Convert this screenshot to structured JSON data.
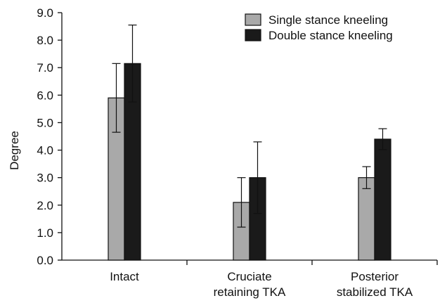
{
  "chart_data": {
    "type": "bar",
    "title": "",
    "xlabel": "",
    "ylabel": "Degree",
    "ylim": [
      0,
      9
    ],
    "ytick_labels": [
      "0.0",
      "1.0",
      "2.0",
      "3.0",
      "4.0",
      "5.0",
      "6.0",
      "7.0",
      "8.0",
      "9.0"
    ],
    "categories": [
      [
        "Intact"
      ],
      [
        "Cruciate",
        "retaining TKA"
      ],
      [
        "Posterior",
        "stabilized TKA"
      ]
    ],
    "series": [
      {
        "name": "Single stance kneeling",
        "color": "#a9a9a9",
        "values": [
          5.9,
          2.1,
          3.0
        ],
        "errors": [
          1.25,
          0.9,
          0.4
        ]
      },
      {
        "name": "Double stance kneeling",
        "color": "#1a1a1a",
        "values": [
          7.15,
          3.0,
          4.4
        ],
        "errors": [
          1.4,
          1.3,
          0.38
        ]
      }
    ],
    "error_bars": true,
    "grid": false,
    "legend_position": "top-right"
  }
}
